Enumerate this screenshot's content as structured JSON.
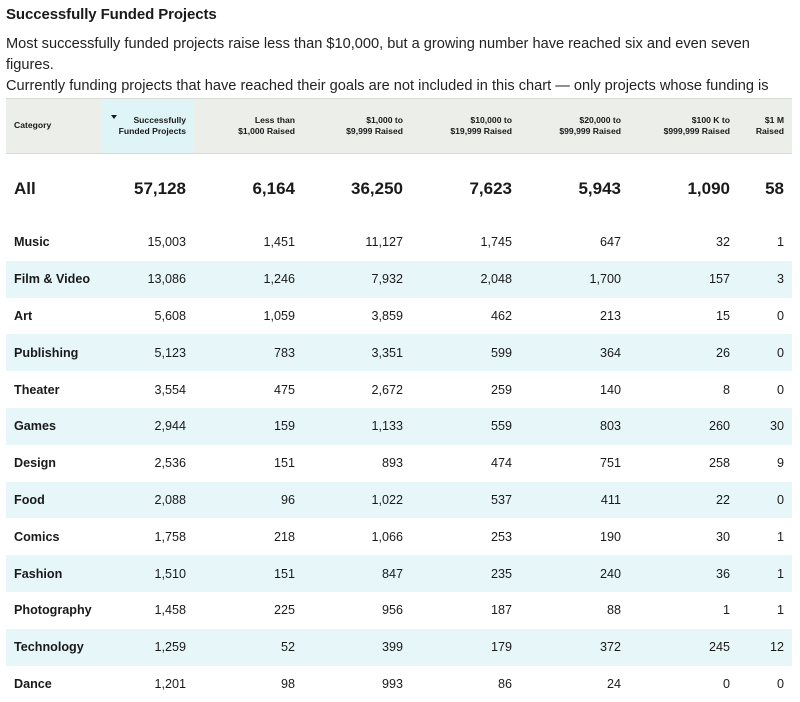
{
  "title": "Successfully Funded Projects",
  "description": {
    "line1": "Most successfully funded projects raise less than $10,000, but a growing number have reached six and even seven figures.",
    "line2": "Currently funding projects that have reached their goals are not included in this chart — only projects whose funding is complete."
  },
  "sorted_column": "Successfully Funded Projects",
  "colors": {
    "header_bg": "#eceeea",
    "sorted_header_bg": "#dff4f7",
    "alt_row_bg": "#e7f6f8"
  },
  "header": {
    "category": "Category",
    "funded": [
      "Successfully",
      "Funded Projects"
    ],
    "lt1k": [
      "Less than",
      "$1,000 Raised"
    ],
    "r1k": [
      "$1,000 to",
      "$9,999 Raised"
    ],
    "r10k": [
      "$10,000 to",
      "$19,999 Raised"
    ],
    "r20k": [
      "$20,000 to",
      "$99,999 Raised"
    ],
    "r100k": [
      "$100 K to",
      "$999,999 Raised"
    ],
    "r1m": [
      "$1 M",
      "Raised"
    ]
  },
  "chart_data": {
    "type": "table",
    "title": "Successfully Funded Projects",
    "columns": [
      "Category",
      "Successfully Funded Projects",
      "Less than $1,000 Raised",
      "$1,000 to $9,999 Raised",
      "$10,000 to $19,999 Raised",
      "$20,000 to $99,999 Raised",
      "$100 K to $999,999 Raised",
      "$1 M Raised"
    ],
    "rows": [
      [
        "All",
        "57,128",
        "6,164",
        "36,250",
        "7,623",
        "5,943",
        "1,090",
        "58"
      ],
      [
        "Music",
        "15,003",
        "1,451",
        "11,127",
        "1,745",
        "647",
        "32",
        "1"
      ],
      [
        "Film & Video",
        "13,086",
        "1,246",
        "7,932",
        "2,048",
        "1,700",
        "157",
        "3"
      ],
      [
        "Art",
        "5,608",
        "1,059",
        "3,859",
        "462",
        "213",
        "15",
        "0"
      ],
      [
        "Publishing",
        "5,123",
        "783",
        "3,351",
        "599",
        "364",
        "26",
        "0"
      ],
      [
        "Theater",
        "3,554",
        "475",
        "2,672",
        "259",
        "140",
        "8",
        "0"
      ],
      [
        "Games",
        "2,944",
        "159",
        "1,133",
        "559",
        "803",
        "260",
        "30"
      ],
      [
        "Design",
        "2,536",
        "151",
        "893",
        "474",
        "751",
        "258",
        "9"
      ],
      [
        "Food",
        "2,088",
        "96",
        "1,022",
        "537",
        "411",
        "22",
        "0"
      ],
      [
        "Comics",
        "1,758",
        "218",
        "1,066",
        "253",
        "190",
        "30",
        "1"
      ],
      [
        "Fashion",
        "1,510",
        "151",
        "847",
        "235",
        "240",
        "36",
        "1"
      ],
      [
        "Photography",
        "1,458",
        "225",
        "956",
        "187",
        "88",
        "1",
        "1"
      ],
      [
        "Technology",
        "1,259",
        "52",
        "399",
        "179",
        "372",
        "245",
        "12"
      ],
      [
        "Dance",
        "1,201",
        "98",
        "993",
        "86",
        "24",
        "0",
        "0"
      ]
    ]
  }
}
